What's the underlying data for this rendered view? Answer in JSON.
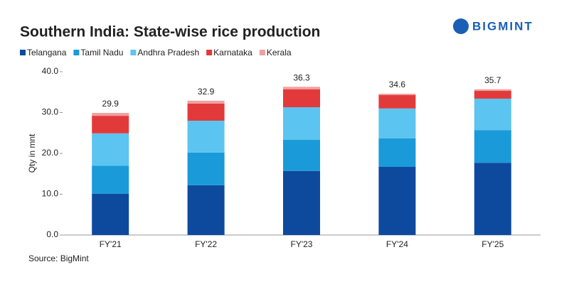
{
  "brand": "BIGMINT",
  "source": "Source: BigMint",
  "chart_data": {
    "type": "stacked-bar",
    "title": "Southern India: State-wise rice production",
    "y_label": "Qty in mnt",
    "categories": [
      "FY'21",
      "FY'22",
      "FY'23",
      "FY'24",
      "FY'25"
    ],
    "series": [
      {
        "name": "Telangana",
        "color": "#0d4a9e",
        "values": [
          10.1,
          12.2,
          15.7,
          16.7,
          17.7
        ]
      },
      {
        "name": "Tamil Nadu",
        "color": "#1a9ad9",
        "values": [
          6.9,
          8.0,
          7.6,
          7.0,
          8.0
        ]
      },
      {
        "name": "Andhra Pradesh",
        "color": "#5cc4f0",
        "values": [
          7.9,
          7.8,
          8.0,
          7.3,
          7.7
        ]
      },
      {
        "name": "Karnataka",
        "color": "#e23a3a",
        "values": [
          4.3,
          4.2,
          4.4,
          3.3,
          1.9
        ]
      },
      {
        "name": "Kerala",
        "color": "#f0a0a0",
        "values": [
          0.7,
          0.7,
          0.6,
          0.3,
          0.4
        ]
      }
    ],
    "totals": [
      29.9,
      32.9,
      36.3,
      34.6,
      35.7
    ],
    "ylim": [
      0,
      40
    ],
    "yticks": [
      {
        "value": 0,
        "label": "0.0"
      },
      {
        "value": 10,
        "label": "10.0"
      },
      {
        "value": 20,
        "label": "20.0"
      },
      {
        "value": 30,
        "label": "30.0"
      },
      {
        "value": 40,
        "label": "40.0"
      }
    ],
    "grid": false
  }
}
